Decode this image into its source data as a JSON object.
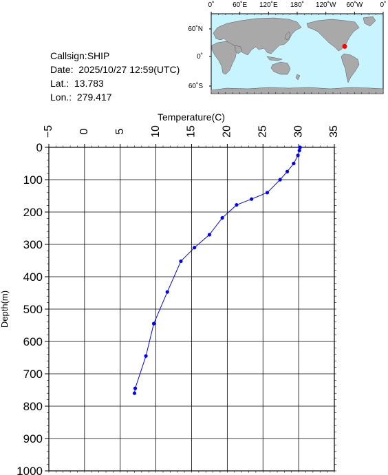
{
  "info": {
    "callsign": "Callsign:SHIP",
    "date": "Date:  2025/10/27 12:59(UTC)",
    "lat": "Lat.:  13.783",
    "lon": "Lon.:  279.417"
  },
  "map": {
    "lon_labels": [
      "0˚",
      "60˚E",
      "120˚E",
      "180˚",
      "120˚W",
      "60˚W",
      "0˚"
    ],
    "lat_labels": [
      "60˚N",
      "0˚",
      "60˚S"
    ],
    "ocean_color": "#c8f4ff",
    "land_color": "#a9a9a9",
    "marker_color": "#ff0000",
    "marker_lon": 279.417,
    "marker_lat": 13.783
  },
  "chart_data": {
    "type": "line",
    "xlabel": "Temperature(C)",
    "ylabel": "Depth(m)",
    "xlim": [
      -5,
      35
    ],
    "ylim": [
      0,
      1000
    ],
    "y_inverted": true,
    "x_ticks": [
      -5,
      0,
      5,
      10,
      15,
      20,
      25,
      30,
      35
    ],
    "y_ticks": [
      0,
      100,
      200,
      300,
      400,
      500,
      600,
      700,
      800,
      900,
      1000
    ],
    "grid": true,
    "line_color": "#0000ff",
    "series": [
      {
        "temperature": [
          30.2,
          30.1,
          29.9,
          29.3,
          28.4,
          27.4,
          25.6,
          23.4,
          21.3,
          19.3,
          17.5,
          15.4,
          13.5,
          11.6,
          9.7,
          8.6,
          7.1,
          7.0
        ],
        "depth": [
          0,
          10,
          25,
          50,
          75,
          100,
          140,
          160,
          178,
          218,
          270,
          310,
          352,
          447,
          545,
          645,
          745,
          760
        ]
      }
    ]
  }
}
